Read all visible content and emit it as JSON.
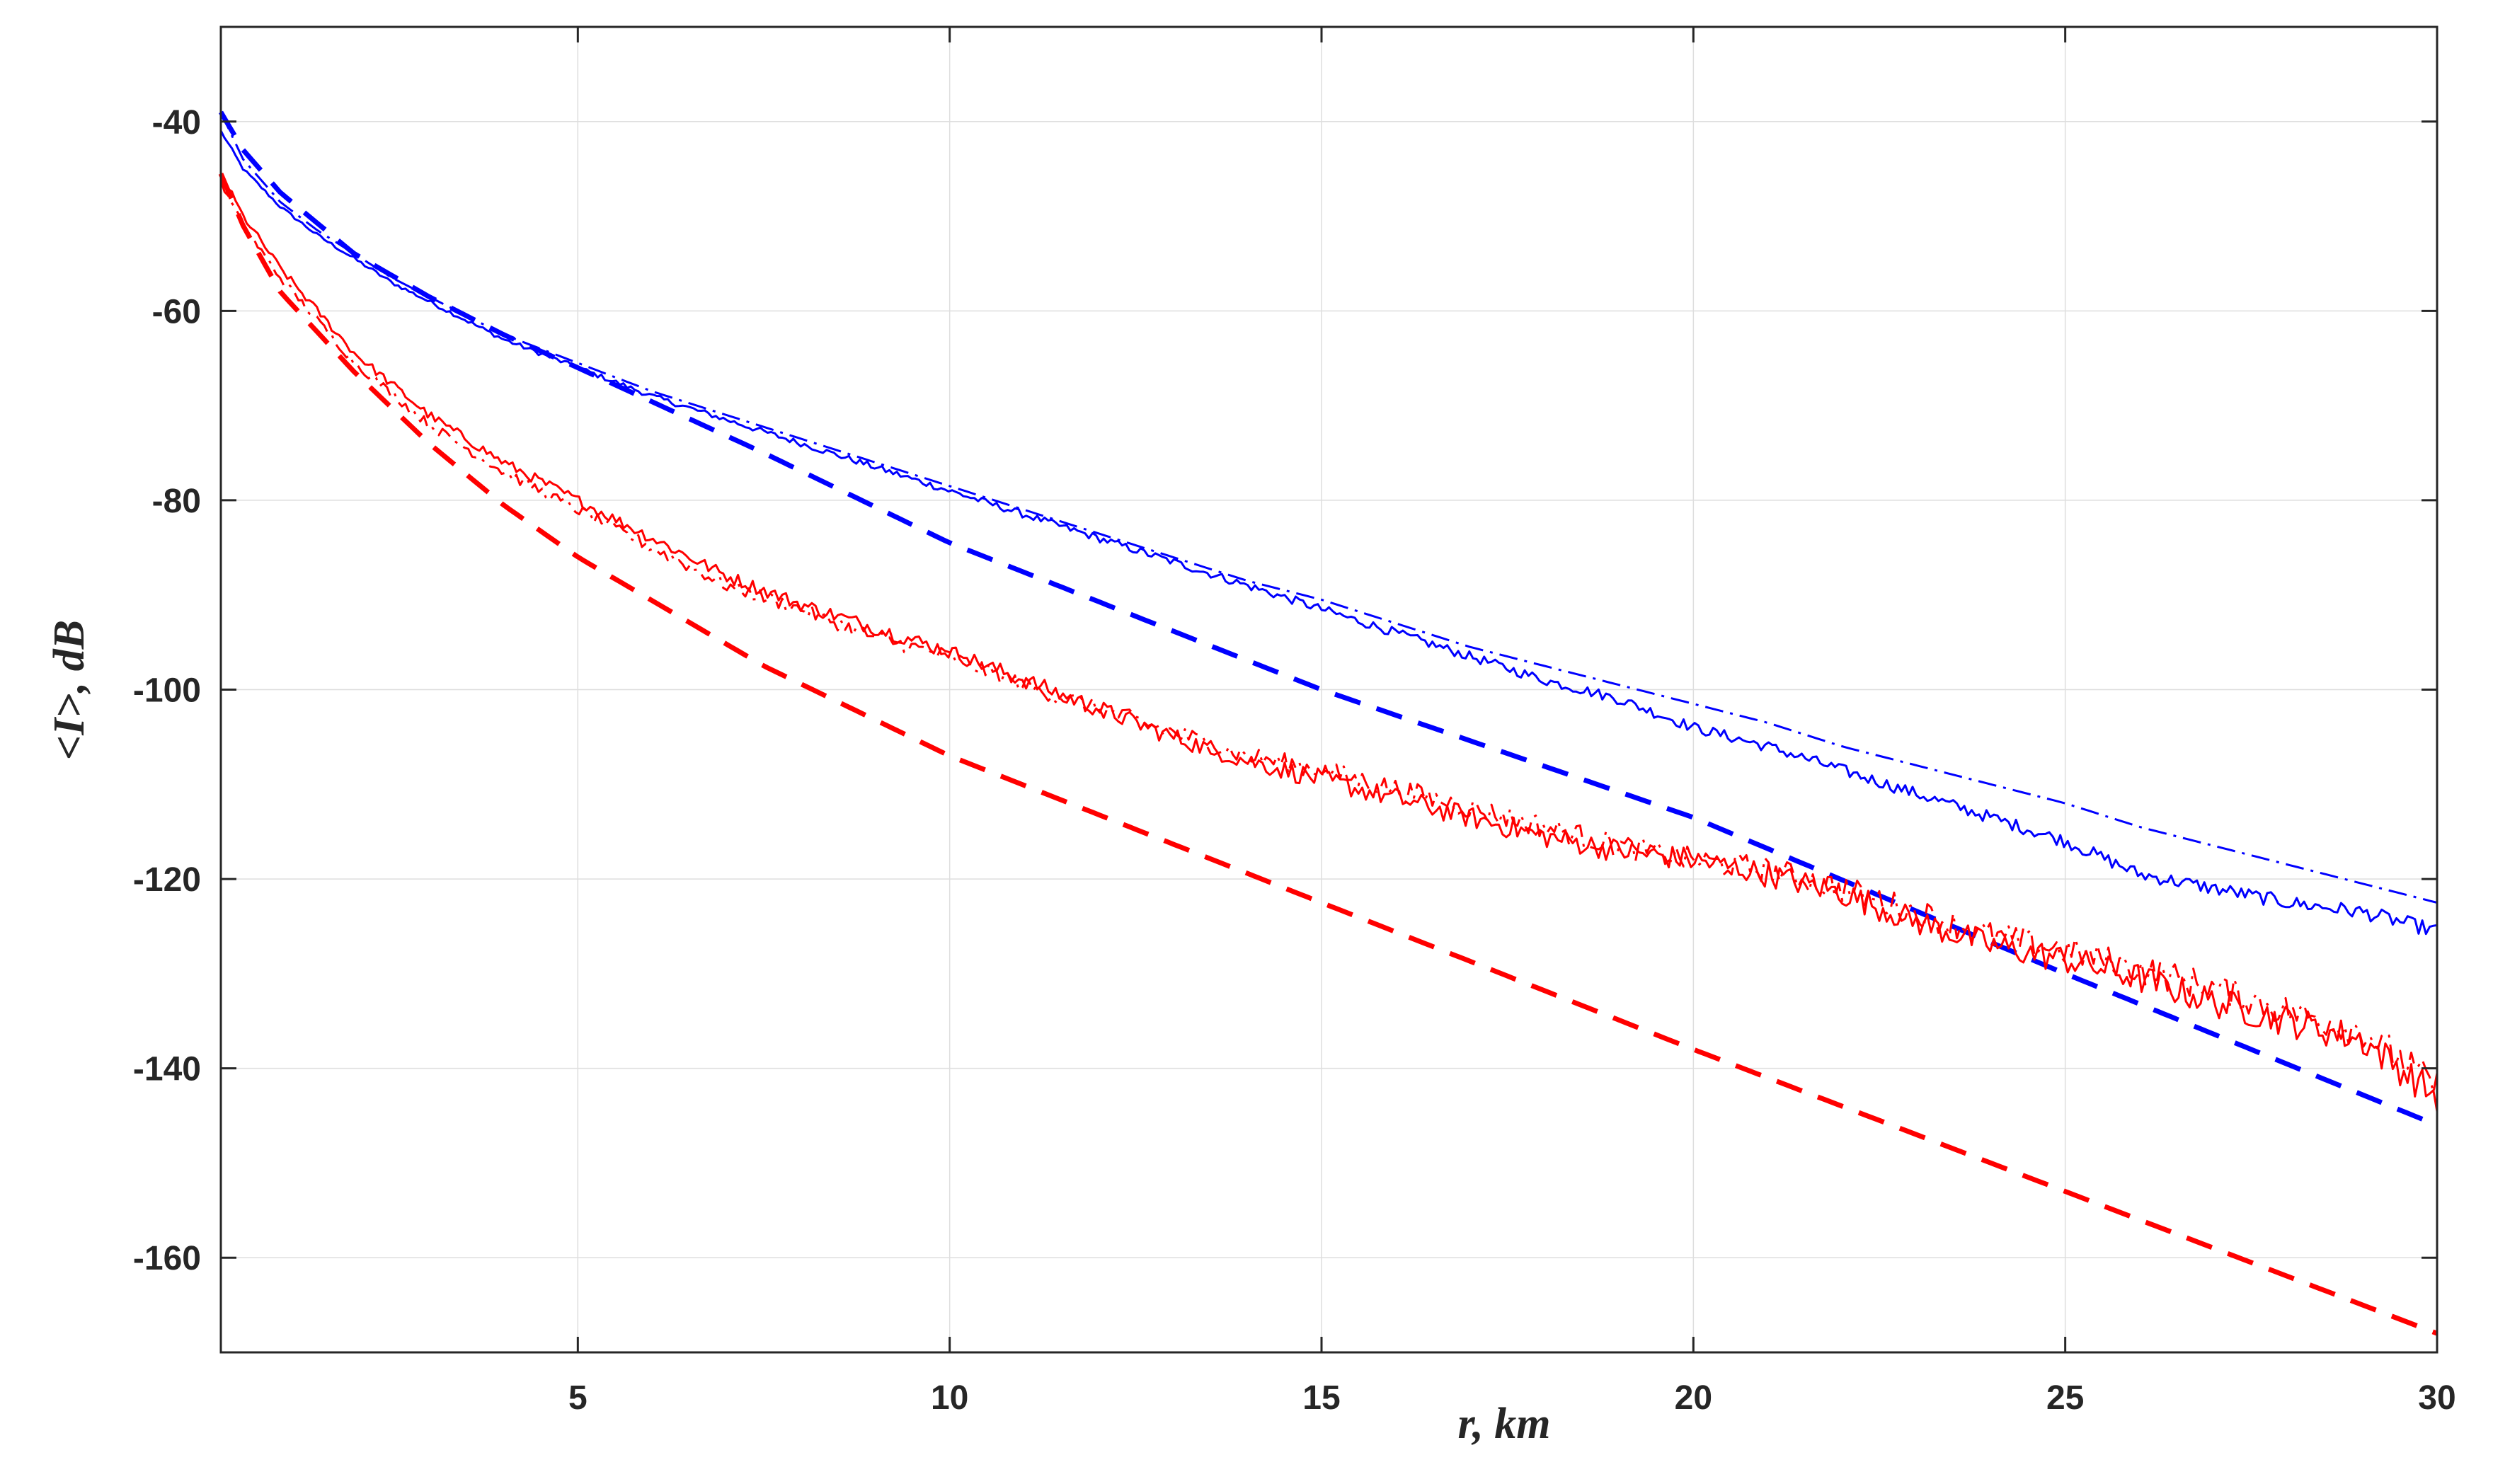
{
  "chart_data": {
    "type": "line",
    "xlabel": "r, km",
    "ylabel": "<I>, dB",
    "xlim": [
      0.2,
      30
    ],
    "ylim": [
      -170,
      -30
    ],
    "xticks": [
      5,
      10,
      15,
      20,
      25,
      30
    ],
    "yticks": [
      -40,
      -60,
      -80,
      -100,
      -120,
      -140,
      -160
    ],
    "grid": true,
    "legend": "none",
    "series": [
      {
        "color": "#0000ff",
        "style": "solid",
        "width": 3,
        "x": [
          0.2,
          0.5,
          1,
          1.5,
          2,
          2.5,
          3,
          4,
          5,
          6,
          7,
          8,
          9,
          10,
          11,
          12,
          13,
          14,
          15,
          16,
          17,
          18,
          19,
          20,
          21,
          22,
          23,
          24,
          25,
          26,
          27,
          28,
          29,
          30
        ],
        "y": [
          -41,
          -45,
          -49,
          -52,
          -54.5,
          -57,
          -59,
          -63,
          -66,
          -69,
          -71.5,
          -74,
          -76.5,
          -79,
          -81.5,
          -84,
          -86.5,
          -89,
          -91.5,
          -94,
          -96.5,
          -99,
          -101,
          -104,
          -106,
          -108.5,
          -111,
          -113.5,
          -116,
          -119.5,
          -121,
          -122.5,
          -123.5,
          -125.5
        ],
        "noise": 0.4
      },
      {
        "color": "#0000ff",
        "style": "dashdot",
        "width": 3,
        "x": [
          0.2,
          0.5,
          1,
          1.5,
          2,
          2.5,
          3,
          4,
          5,
          6,
          7,
          8,
          9,
          10,
          11,
          12,
          13,
          14,
          15,
          16,
          17,
          18,
          19,
          20,
          21,
          22,
          23,
          24,
          25,
          26,
          27,
          28,
          29,
          30
        ],
        "y": [
          -39,
          -44,
          -48.5,
          -51.5,
          -54,
          -56.5,
          -58.5,
          -62.5,
          -65.5,
          -68.5,
          -71,
          -73.5,
          -76,
          -78.5,
          -81,
          -83.5,
          -86,
          -88.5,
          -90.5,
          -93,
          -95.5,
          -97.5,
          -99.5,
          -101.5,
          -103.5,
          -106,
          -108,
          -110,
          -112,
          -114.5,
          -116.5,
          -118.5,
          -120.5,
          -122.5
        ],
        "noise": 0
      },
      {
        "color": "#0000ff",
        "style": "dashed",
        "width": 7,
        "x": [
          0.2,
          0.5,
          1,
          2,
          3,
          4,
          5,
          7.5,
          10,
          15,
          20,
          25,
          30
        ],
        "y": [
          -39,
          -43,
          -47.5,
          -54,
          -58.5,
          -62.5,
          -66,
          -75,
          -84.5,
          -100,
          -113.5,
          -130,
          -146
        ],
        "noise": 0
      },
      {
        "color": "#ff0000",
        "style": "solid",
        "width": 3,
        "x": [
          0.2,
          0.5,
          1,
          1.5,
          2,
          3,
          4,
          5,
          6,
          7,
          8,
          9,
          10,
          11,
          12,
          13,
          14,
          15,
          16,
          17,
          18,
          19,
          20,
          21,
          22,
          23,
          24,
          25,
          26,
          27,
          28,
          29,
          30
        ],
        "y": [
          -45.5,
          -50,
          -55.5,
          -60,
          -64.5,
          -71,
          -76,
          -80,
          -84,
          -88,
          -91,
          -93.5,
          -96,
          -99,
          -102,
          -105,
          -107.5,
          -109.5,
          -111.5,
          -113.5,
          -115.5,
          -117,
          -118,
          -119.5,
          -121.5,
          -124.5,
          -127,
          -128.5,
          -130.5,
          -133,
          -135,
          -137,
          -143
        ],
        "noise": 0.9
      },
      {
        "color": "#ff0000",
        "style": "dashdot",
        "width": 3,
        "x": [
          0.2,
          0.5,
          1,
          1.5,
          2,
          3,
          4,
          5,
          6,
          7,
          8,
          9,
          10,
          11,
          12,
          13,
          14,
          15,
          16,
          17,
          18,
          19,
          20,
          21,
          22,
          23,
          24,
          25,
          26,
          27,
          28,
          29,
          30
        ],
        "y": [
          -46.5,
          -51,
          -56.5,
          -61,
          -65.5,
          -72,
          -77,
          -81,
          -85,
          -89,
          -91.5,
          -94.5,
          -96.5,
          -99.5,
          -102,
          -104.5,
          -107,
          -108.5,
          -110.5,
          -112.5,
          -114.5,
          -116.5,
          -118,
          -119,
          -121,
          -123.5,
          -126,
          -127.5,
          -129.5,
          -131.5,
          -134,
          -136,
          -142
        ],
        "noise": 0.9
      },
      {
        "color": "#ff0000",
        "style": "dashed",
        "width": 7,
        "x": [
          0.2,
          0.5,
          1,
          2,
          3,
          4,
          5,
          7.5,
          10,
          15,
          20,
          25,
          30
        ],
        "y": [
          -45.5,
          -51,
          -58,
          -66.5,
          -74,
          -80.5,
          -86,
          -97.5,
          -107,
          -122.5,
          -138,
          -153,
          -168
        ],
        "noise": 0
      }
    ]
  }
}
